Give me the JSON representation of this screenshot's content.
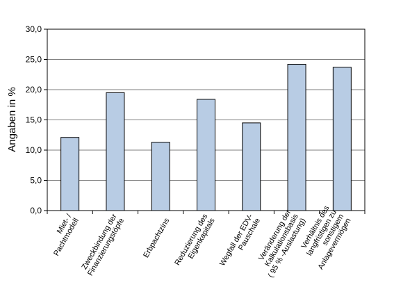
{
  "chart_data": {
    "type": "bar",
    "ylabel": "Angaben in %",
    "ylim": [
      0,
      30
    ],
    "y_ticks": [
      "0,0",
      "5,0",
      "10,0",
      "15,0",
      "20,0",
      "25,0",
      "30,0"
    ],
    "grid": true,
    "bar_color": "#b8cce4",
    "categories": [
      [
        "Miet- /",
        "Pachtmodell"
      ],
      [
        "Zweckbindung  der",
        "Finanzierungstöpfe"
      ],
      [
        "Erbpachtzins"
      ],
      [
        "Reduzierung  des",
        "Eigenkapitals"
      ],
      [
        "Wegfall der EDV-",
        "Pauschale"
      ],
      [
        "Veränderung  der",
        "Kalkulationsbasis",
        "( 95 % -Auslastung)"
      ],
      [
        "Verhältnis des",
        "langfristigen  zu",
        "sonstigem",
        "Anlagevermögen"
      ]
    ],
    "values": [
      12.1,
      19.5,
      11.3,
      18.4,
      14.5,
      24.2,
      23.7
    ]
  }
}
